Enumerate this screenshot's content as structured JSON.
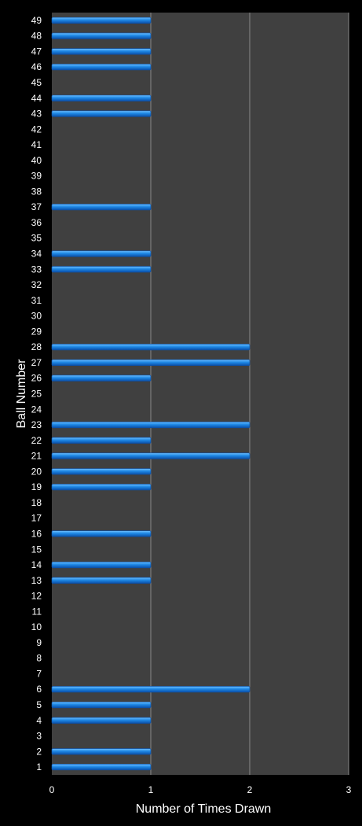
{
  "chart_data": {
    "type": "bar",
    "orientation": "horizontal",
    "categories": [
      "1",
      "2",
      "3",
      "4",
      "5",
      "6",
      "7",
      "8",
      "9",
      "10",
      "11",
      "12",
      "13",
      "14",
      "15",
      "16",
      "17",
      "18",
      "19",
      "20",
      "21",
      "22",
      "23",
      "24",
      "25",
      "26",
      "27",
      "28",
      "29",
      "30",
      "31",
      "32",
      "33",
      "34",
      "35",
      "36",
      "37",
      "38",
      "39",
      "40",
      "41",
      "42",
      "43",
      "44",
      "45",
      "46",
      "47",
      "48",
      "49"
    ],
    "values": [
      1,
      1,
      0,
      1,
      1,
      2,
      0,
      0,
      0,
      0,
      0,
      0,
      1,
      1,
      0,
      1,
      0,
      0,
      1,
      1,
      2,
      1,
      2,
      0,
      0,
      1,
      2,
      2,
      0,
      0,
      0,
      0,
      1,
      1,
      0,
      0,
      1,
      0,
      0,
      0,
      0,
      0,
      1,
      1,
      0,
      1,
      1,
      1,
      1
    ],
    "xlabel": "Number of Times Drawn",
    "ylabel": "Ball Number",
    "xlim": [
      0,
      3
    ],
    "xticks": [
      0,
      1,
      2,
      3
    ],
    "grid": "vertical",
    "colors": {
      "background": "#000000",
      "plot_area": "#404040",
      "gridline": "#8a8a8a",
      "bar_light": "#6fc0ff",
      "bar_mid": "#1e88e5",
      "bar_dark": "#0b4fa8",
      "text": "#ffffff"
    }
  }
}
